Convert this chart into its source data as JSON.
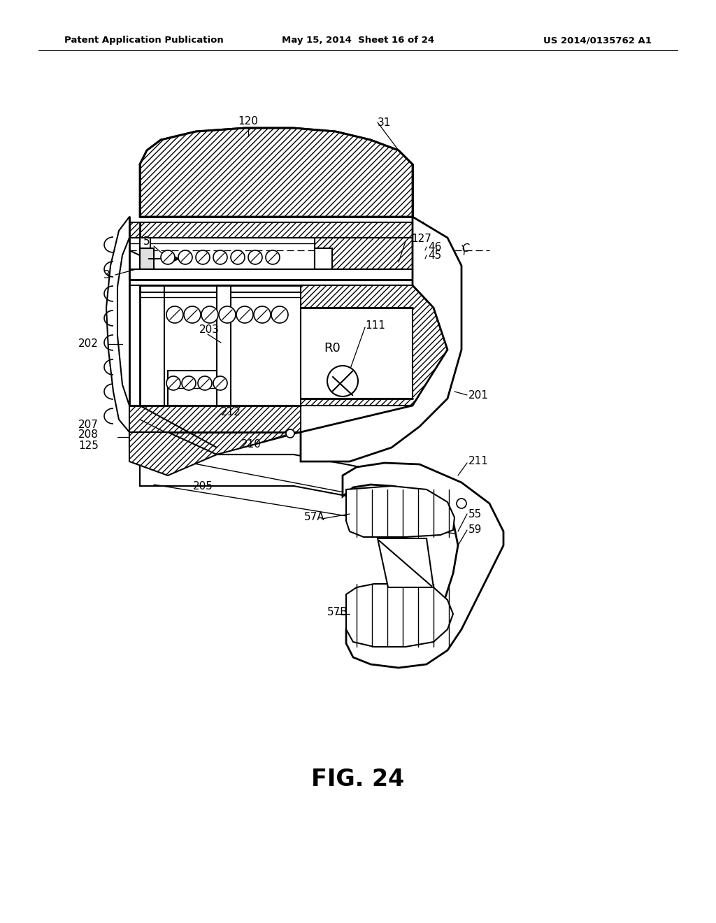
{
  "title": "FIG. 24",
  "header_left": "Patent Application Publication",
  "header_mid": "May 15, 2014  Sheet 16 of 24",
  "header_right": "US 2014/0135762 A1",
  "bg_color": "#ffffff"
}
